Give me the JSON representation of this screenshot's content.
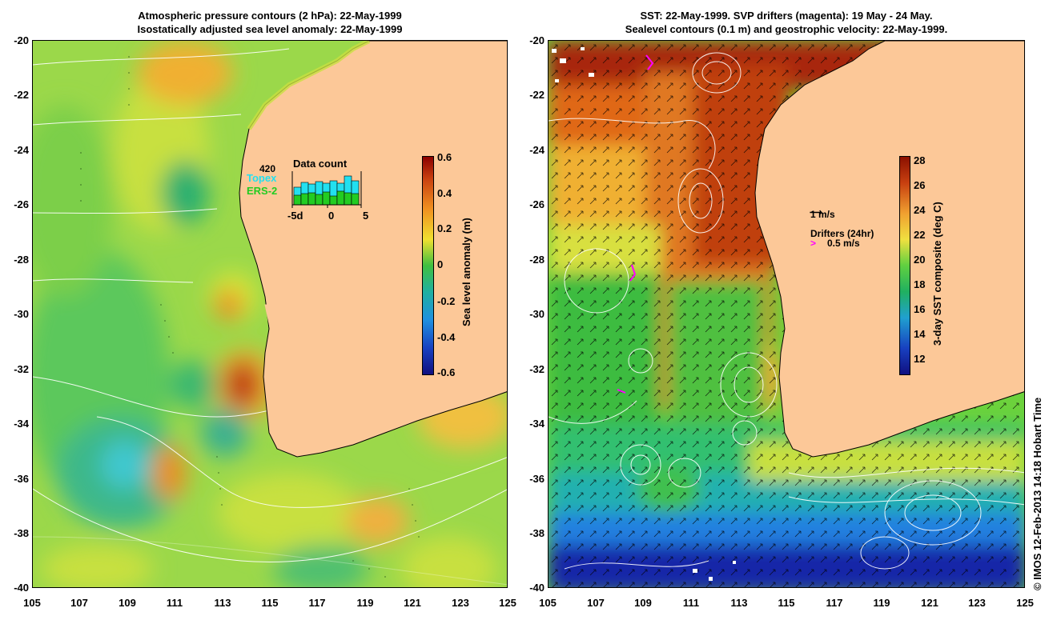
{
  "left_panel": {
    "title_line1": "Atmospheric pressure contours (2 hPa): 22-May-1999",
    "title_line2": "Isostatically adjusted sea level anomaly: 22-May-1999",
    "colorbar": {
      "label": "Sea level anomaly (m)",
      "ticks": [
        "0.6",
        "0.4",
        "0.2",
        "0",
        "-0.2",
        "-0.4",
        "-0.6"
      ],
      "range": [
        -0.6,
        0.6
      ]
    },
    "data_count": {
      "title": "Data count",
      "count": "420",
      "legend": [
        "Topex",
        "ERS-2"
      ],
      "x_ticks": [
        "-5d",
        "0",
        "5"
      ],
      "topex_color": "#22e0f0",
      "ers_color": "#22cc22"
    }
  },
  "right_panel": {
    "title_line1": "SST: 22-May-1999. SVP drifters (magenta): 19 May - 24 May.",
    "title_line2": "Sealevel contours (0.1 m) and geostrophic velocity: 22-May-1999.",
    "colorbar": {
      "label": "3-day SST composite (deg C)",
      "ticks": [
        "28",
        "26",
        "24",
        "22",
        "20",
        "18",
        "16",
        "14",
        "12"
      ],
      "range": [
        11,
        28.5
      ]
    },
    "velocity_scale_label": "1 m/s",
    "drifters_label": "Drifters (24hr)",
    "drifter_scale_label": "0.5 m/s",
    "drifter_color": "#ff00ff"
  },
  "axes": {
    "lat_ticks": [
      "-20",
      "-22",
      "-24",
      "-26",
      "-28",
      "-30",
      "-32",
      "-34",
      "-36",
      "-38",
      "-40"
    ],
    "lon_ticks": [
      "105",
      "107",
      "109",
      "111",
      "113",
      "115",
      "117",
      "119",
      "121",
      "123",
      "125"
    ],
    "lat_range": [
      -40,
      -20
    ],
    "lon_range": [
      105,
      125
    ]
  },
  "colors": {
    "land": "#fcc898",
    "ocean_mid": "#7fe050"
  },
  "credit": "© IMOS 12-Feb-2013 14:18 Hobart Time"
}
